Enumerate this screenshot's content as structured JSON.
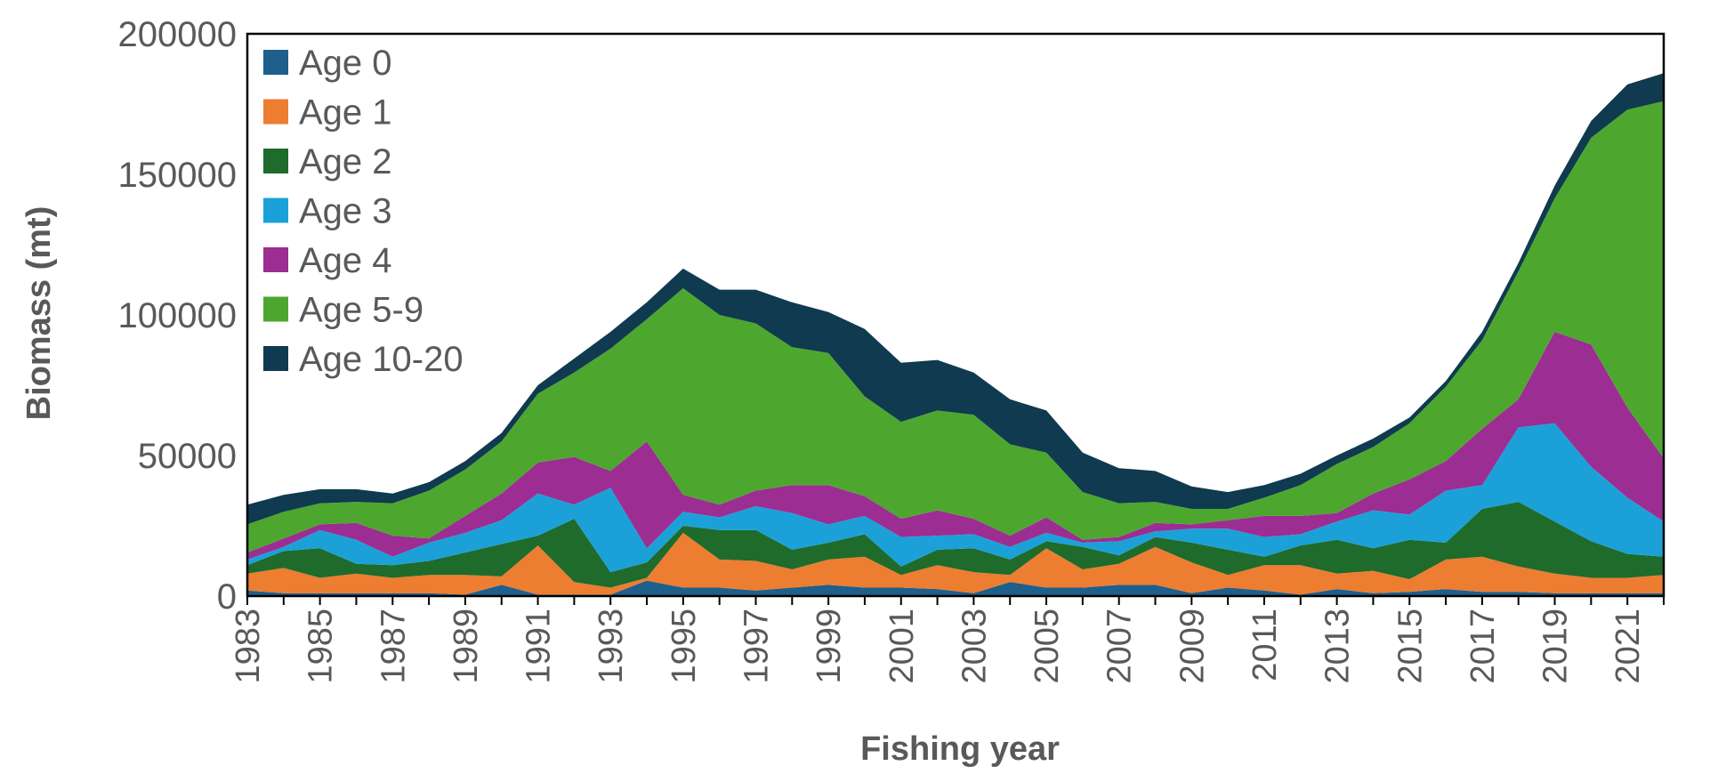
{
  "chart_data": {
    "type": "area",
    "stacked": true,
    "title": "",
    "xlabel": "Fishing year",
    "ylabel": "Biomass (mt)",
    "ylim": [
      0,
      200000
    ],
    "yticks": [
      0,
      50000,
      100000,
      150000,
      200000
    ],
    "xlim": [
      1983,
      2022
    ],
    "xticks": [
      1983,
      1985,
      1987,
      1989,
      1991,
      1993,
      1995,
      1997,
      1999,
      2001,
      2003,
      2005,
      2007,
      2009,
      2011,
      2013,
      2015,
      2017,
      2019,
      2021
    ],
    "legend_position": "top-left",
    "x": [
      1983,
      1984,
      1985,
      1986,
      1987,
      1988,
      1989,
      1990,
      1991,
      1992,
      1993,
      1994,
      1995,
      1996,
      1997,
      1998,
      1999,
      2000,
      2001,
      2002,
      2003,
      2004,
      2005,
      2006,
      2007,
      2008,
      2009,
      2010,
      2011,
      2012,
      2013,
      2014,
      2015,
      2016,
      2017,
      2018,
      2019,
      2020,
      2021,
      2022
    ],
    "series": [
      {
        "name": "Age 0",
        "color": "#1f5f8b",
        "values": [
          2000,
          1000,
          1000,
          1000,
          1000,
          1000,
          500,
          4000,
          500,
          500,
          500,
          5500,
          3000,
          3000,
          2000,
          3000,
          4000,
          3000,
          3000,
          2500,
          1000,
          5000,
          3000,
          3000,
          4000,
          4000,
          1000,
          3000,
          2000,
          500,
          2500,
          1000,
          1500,
          2500,
          1500,
          1500,
          1000,
          1000,
          1000,
          1000
        ]
      },
      {
        "name": "Age 1",
        "color": "#ed7d31",
        "values": [
          6000,
          9000,
          5500,
          7000,
          5500,
          6500,
          7000,
          3000,
          17500,
          4500,
          2500,
          1000,
          19500,
          10000,
          10500,
          6500,
          9000,
          11000,
          4500,
          8500,
          7500,
          2500,
          14000,
          6500,
          7500,
          13500,
          11000,
          4500,
          9000,
          10500,
          5500,
          8000,
          4500,
          10500,
          12500,
          9000,
          7000,
          5500,
          5500,
          6500
        ]
      },
      {
        "name": "Age 2",
        "color": "#1e6b2b",
        "values": [
          3000,
          6000,
          10500,
          3500,
          4500,
          5000,
          8000,
          11500,
          3500,
          22500,
          5500,
          5500,
          2500,
          10500,
          11000,
          7000,
          6000,
          8000,
          3000,
          5500,
          8500,
          5500,
          2500,
          8000,
          3000,
          3500,
          7000,
          9000,
          3000,
          7000,
          12000,
          8000,
          14000,
          6000,
          17000,
          23000,
          18500,
          13000,
          8500,
          6500
        ]
      },
      {
        "name": "Age 3",
        "color": "#1ba1d8",
        "values": [
          2000,
          1500,
          6500,
          8500,
          3000,
          6500,
          7000,
          8500,
          15000,
          5000,
          30000,
          5000,
          5000,
          4500,
          8500,
          13000,
          6500,
          6500,
          10500,
          5000,
          5000,
          4500,
          3000,
          1500,
          5000,
          2000,
          5000,
          7500,
          7000,
          4000,
          6500,
          13500,
          9000,
          18500,
          8500,
          26500,
          35000,
          26500,
          20000,
          12500
        ]
      },
      {
        "name": "Age 4",
        "color": "#9c2d93",
        "values": [
          2500,
          3000,
          2000,
          6000,
          7500,
          1500,
          6000,
          9500,
          11000,
          17000,
          6000,
          38000,
          6000,
          4500,
          5500,
          10000,
          14000,
          7000,
          6500,
          9000,
          5500,
          4000,
          5500,
          1000,
          1500,
          3000,
          1500,
          3000,
          7500,
          6500,
          3000,
          6000,
          12500,
          10500,
          20000,
          10000,
          32500,
          43500,
          32000,
          22500
        ]
      },
      {
        "name": "Age 5-9",
        "color": "#4da72e",
        "values": [
          10000,
          9500,
          7500,
          7500,
          11500,
          17000,
          16500,
          18500,
          24500,
          30000,
          43500,
          43500,
          73500,
          67500,
          59500,
          49000,
          47000,
          35500,
          34500,
          35500,
          37000,
          32500,
          23000,
          17000,
          12000,
          7500,
          5500,
          4000,
          6500,
          11000,
          17500,
          16500,
          20000,
          26500,
          31500,
          45500,
          47500,
          73500,
          106000,
          127000
        ]
      },
      {
        "name": "Age 10-20",
        "color": "#0f3a4f",
        "values": [
          7000,
          6000,
          5000,
          4500,
          3500,
          3000,
          3000,
          3000,
          3000,
          5000,
          6000,
          6000,
          7000,
          9000,
          12000,
          16000,
          14500,
          24000,
          21000,
          18000,
          15000,
          16000,
          15000,
          14000,
          12500,
          11000,
          8000,
          6000,
          4500,
          4000,
          3000,
          3000,
          2000,
          2000,
          3000,
          3000,
          4500,
          6000,
          9000,
          10000
        ]
      }
    ]
  }
}
